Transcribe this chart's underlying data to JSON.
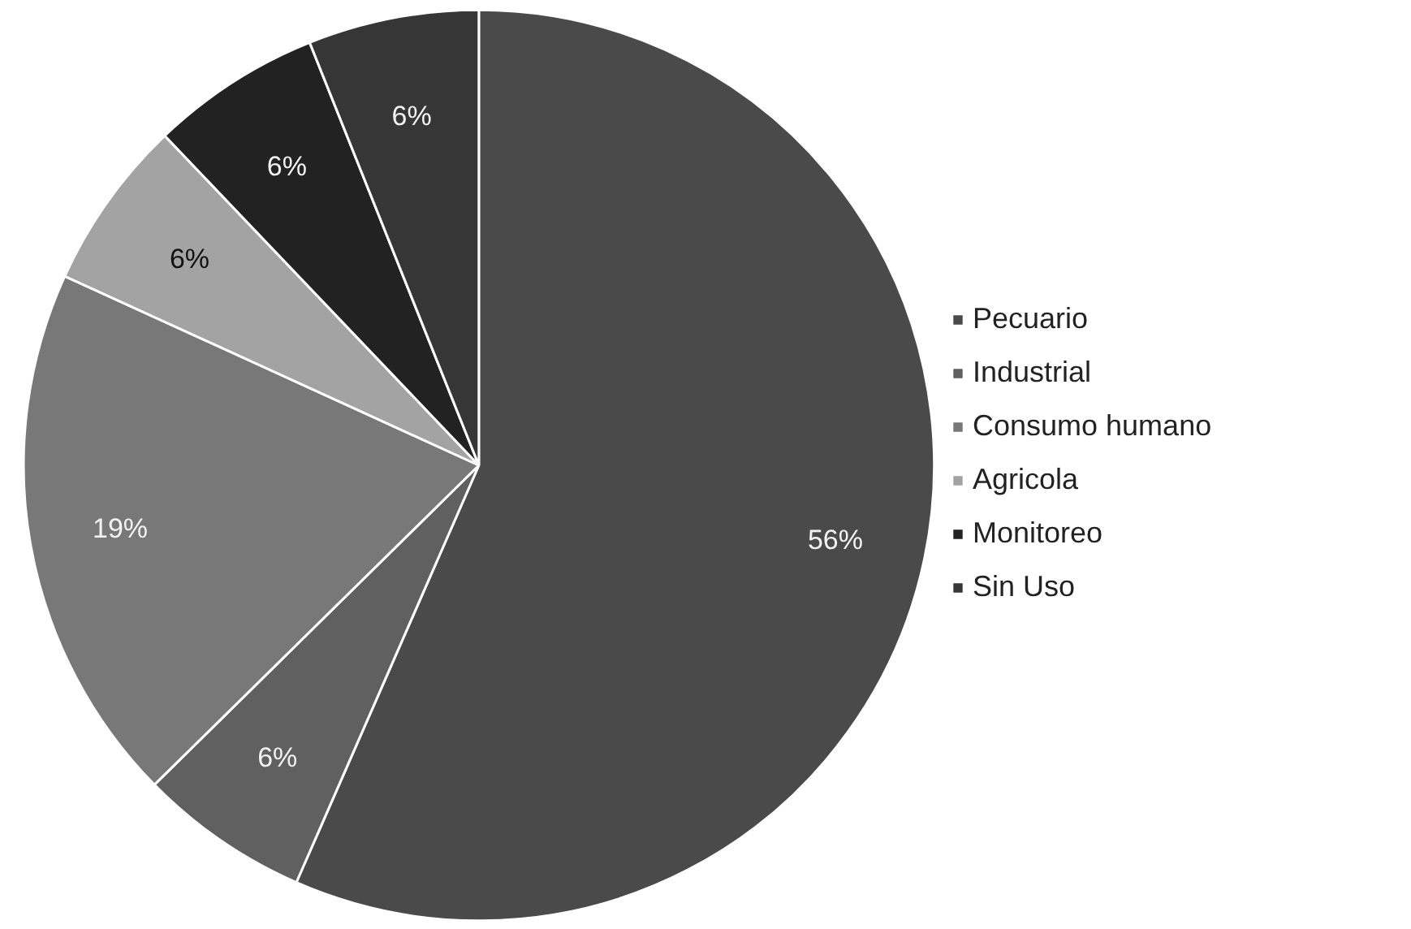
{
  "chart_data": {
    "type": "pie",
    "categories": [
      "Pecuario",
      "Industrial",
      "Consumo humano",
      "Agricola",
      "Monitoreo",
      "Sin Uso"
    ],
    "values": [
      56,
      6,
      19,
      6,
      6,
      6
    ],
    "colors": [
      "#4a4a4a",
      "#606060",
      "#787878",
      "#a3a3a3",
      "#222222",
      "#363636"
    ],
    "value_labels": [
      "56%",
      "6%",
      "19%",
      "6%",
      "6%",
      "6%"
    ],
    "legend": "right"
  }
}
